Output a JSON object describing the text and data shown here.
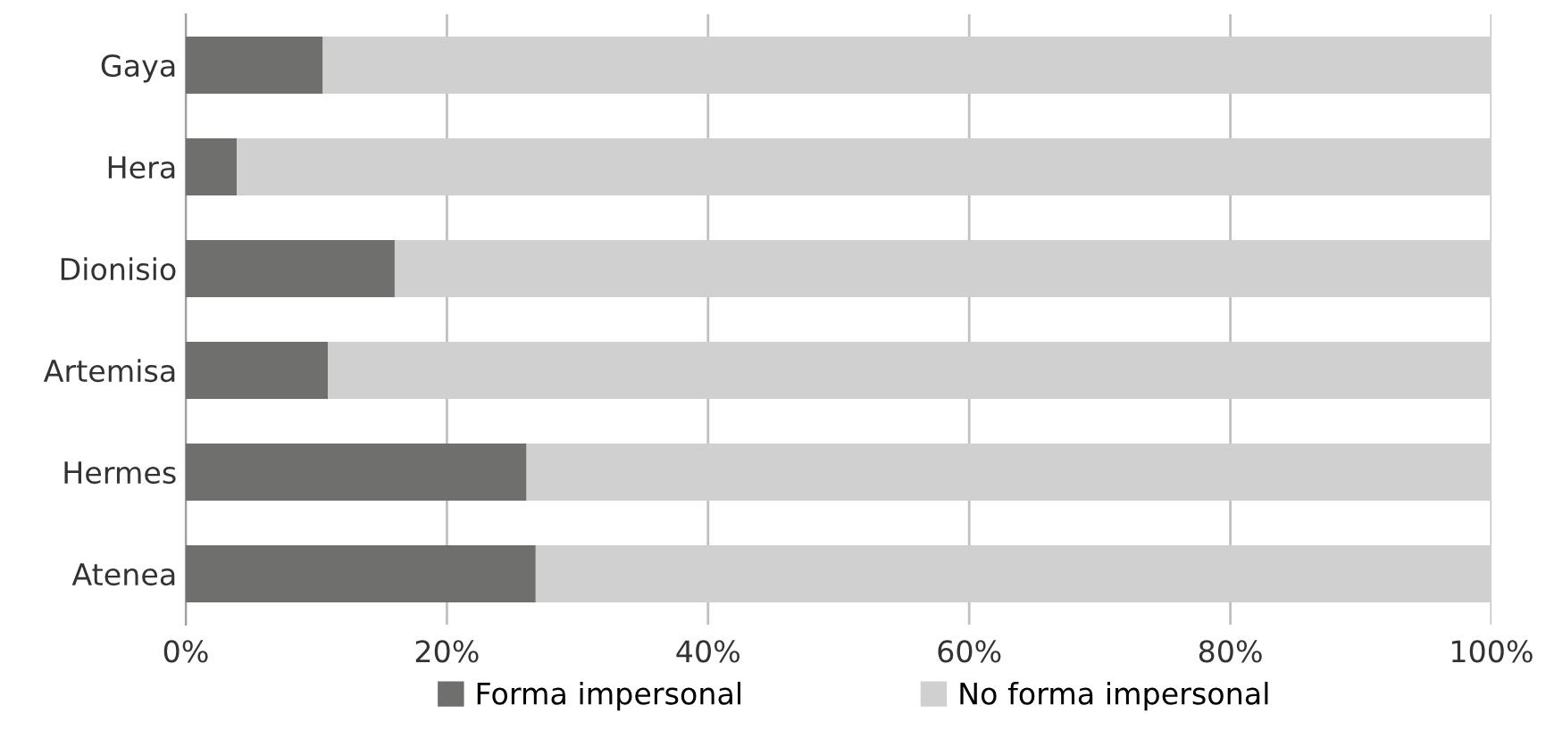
{
  "chart_data": {
    "type": "bar",
    "orientation": "horizontal",
    "stacked": true,
    "categories": [
      "Gaya",
      "Hera",
      "Dionisio",
      "Artemisa",
      "Hermes",
      "Atenea"
    ],
    "series": [
      {
        "name": "Forma impersonal",
        "color": "#6f6f6e",
        "values": [
          10.5,
          3.9,
          16.0,
          10.9,
          26.1,
          26.8
        ]
      },
      {
        "name": "No forma impersonal",
        "color": "#d0d0d0",
        "values": [
          89.5,
          96.1,
          84.0,
          89.1,
          73.9,
          73.2
        ]
      }
    ],
    "xlim": [
      0,
      100
    ],
    "xticks": [
      {
        "value": 0,
        "label": "0%"
      },
      {
        "value": 20,
        "label": "20%"
      },
      {
        "value": 40,
        "label": "40%"
      },
      {
        "value": 60,
        "label": "60%"
      },
      {
        "value": 80,
        "label": "80%"
      },
      {
        "value": 100,
        "label": "100%"
      }
    ],
    "grid": "x",
    "legend": "bottom"
  }
}
